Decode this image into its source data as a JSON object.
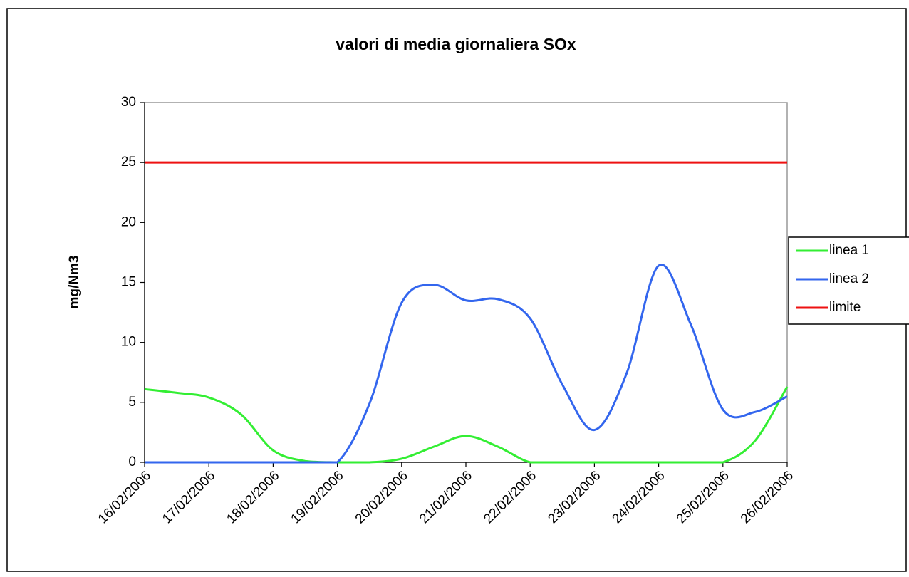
{
  "chart_data": {
    "type": "line",
    "title": "valori di media giornaliera  SOx",
    "y_label": "mg/Nm3",
    "categories": [
      "16/02/2006",
      null,
      "17/02/2006",
      null,
      "18/02/2006",
      null,
      "19/02/2006",
      null,
      "20/02/2006",
      null,
      "21/02/2006",
      null,
      "22/02/2006",
      null,
      "23/02/2006",
      null,
      "24/02/2006",
      null,
      "25/02/2006",
      null,
      "26/02/2006"
    ],
    "series": [
      {
        "name": "linea 1",
        "color": "#33ee33",
        "values": [
          6.1,
          5.8,
          5.4,
          4.0,
          1.0,
          0.1,
          0,
          0,
          0.3,
          1.3,
          2.2,
          1.3,
          0,
          0,
          0,
          0,
          0,
          0,
          0,
          1.8,
          6.3
        ]
      },
      {
        "name": "linea 2",
        "color": "#3366ee",
        "values": [
          0,
          0,
          0,
          0,
          0,
          0,
          0,
          4.9,
          13.3,
          14.8,
          13.5,
          13.6,
          12.0,
          6.5,
          2.7,
          7.4,
          16.4,
          11.5,
          4.4,
          4.2,
          5.5
        ]
      },
      {
        "name": "limite",
        "color": "#ee1111",
        "values": [
          25,
          25,
          25,
          25,
          25,
          25,
          25,
          25,
          25,
          25,
          25,
          25,
          25,
          25,
          25,
          25,
          25,
          25,
          25,
          25,
          25
        ]
      }
    ],
    "ylim": [
      0,
      30
    ],
    "yticks": [
      0,
      5,
      10,
      15,
      20,
      25,
      30
    ],
    "legend": "right"
  }
}
